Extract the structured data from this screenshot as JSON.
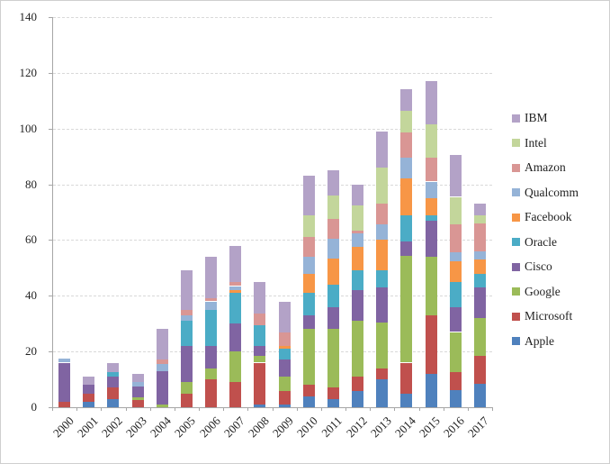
{
  "figure": {
    "background": "#ffffff",
    "axis_color": "#a6a6a6",
    "gridline_color": "#d9d9d9",
    "text_color": "#1f1f1f"
  },
  "chart_data": {
    "type": "bar",
    "stacked": true,
    "title": "",
    "xlabel": "",
    "ylabel": "",
    "categories": [
      "2000",
      "2001",
      "2002",
      "2003",
      "2004",
      "2005",
      "2006",
      "2007",
      "2008",
      "2009",
      "2010",
      "2011",
      "2012",
      "2013",
      "2014",
      "2015",
      "2016",
      "2017"
    ],
    "series": [
      {
        "name": "Apple",
        "color": "#4F81BD",
        "values": [
          0,
          2,
          3,
          0,
          0,
          0,
          0,
          0,
          1,
          1,
          4,
          3,
          6,
          10,
          5,
          12,
          6,
          8.5
        ]
      },
      {
        "name": "Microsoft",
        "color": "#C0504D",
        "values": [
          2,
          3,
          4,
          2.5,
          0,
          5,
          10,
          9,
          15,
          5,
          4,
          4,
          5,
          4,
          11,
          21,
          6.5,
          10
        ]
      },
      {
        "name": "Google",
        "color": "#9BBB59",
        "values": [
          0,
          0,
          0,
          1,
          1,
          4,
          4,
          11,
          2.5,
          5,
          20,
          21,
          20,
          16.5,
          38.5,
          21,
          14.5,
          13.5
        ]
      },
      {
        "name": "Cisco",
        "color": "#8064A2",
        "values": [
          14,
          3,
          4,
          4,
          12,
          13,
          8,
          10,
          3.5,
          6,
          5,
          8,
          11,
          12.5,
          5,
          13,
          9,
          11
        ]
      },
      {
        "name": "Oracle",
        "color": "#4BACC6",
        "values": [
          0,
          0,
          1.5,
          0,
          0,
          9,
          13,
          11,
          7.5,
          4,
          8,
          8,
          7,
          6,
          9.5,
          2,
          9,
          5
        ]
      },
      {
        "name": "Facebook",
        "color": "#F79646",
        "values": [
          0,
          0,
          0,
          0,
          0,
          0,
          0,
          1,
          0,
          1,
          7,
          9.5,
          8.5,
          11,
          13,
          6,
          7.5,
          5
        ]
      },
      {
        "name": "Qualcomm",
        "color": "#95B3D7",
        "values": [
          1.5,
          0,
          0,
          1.5,
          2.5,
          2,
          3,
          1.5,
          0,
          0,
          6,
          7,
          5,
          5.5,
          7.5,
          6,
          3,
          3
        ]
      },
      {
        "name": "Amazon",
        "color": "#D99694",
        "values": [
          0,
          0,
          0,
          0,
          1.5,
          2,
          1,
          1.5,
          4,
          5,
          7,
          7,
          1,
          7.5,
          9,
          8.5,
          10,
          10
        ]
      },
      {
        "name": "Intel",
        "color": "#C3D69B",
        "values": [
          0,
          0,
          0,
          0,
          0,
          0,
          0,
          0,
          0,
          0,
          8,
          8.5,
          9,
          13,
          8,
          12,
          10,
          3
        ]
      },
      {
        "name": "IBM",
        "color": "#B3A2C7",
        "values": [
          0,
          3,
          3.5,
          3,
          11,
          14,
          15,
          13,
          11.5,
          11,
          14,
          9,
          7.5,
          13,
          7.5,
          15.5,
          15,
          4
        ]
      }
    ],
    "totals": [
      17.5,
      11,
      16,
      12,
      28,
      49,
      54,
      58,
      45,
      38,
      83,
      85,
      80,
      99,
      114,
      117,
      90.5,
      73
    ],
    "ylim": [
      0,
      140
    ],
    "yticks": [
      0,
      20,
      40,
      60,
      80,
      100,
      120,
      140
    ],
    "grid": "horizontal-dashed",
    "legend_position": "right",
    "legend_order_top_to_bottom": [
      "IBM",
      "Intel",
      "Amazon",
      "Qualcomm",
      "Facebook",
      "Oracle",
      "Cisco",
      "Google",
      "Microsoft",
      "Apple"
    ]
  }
}
